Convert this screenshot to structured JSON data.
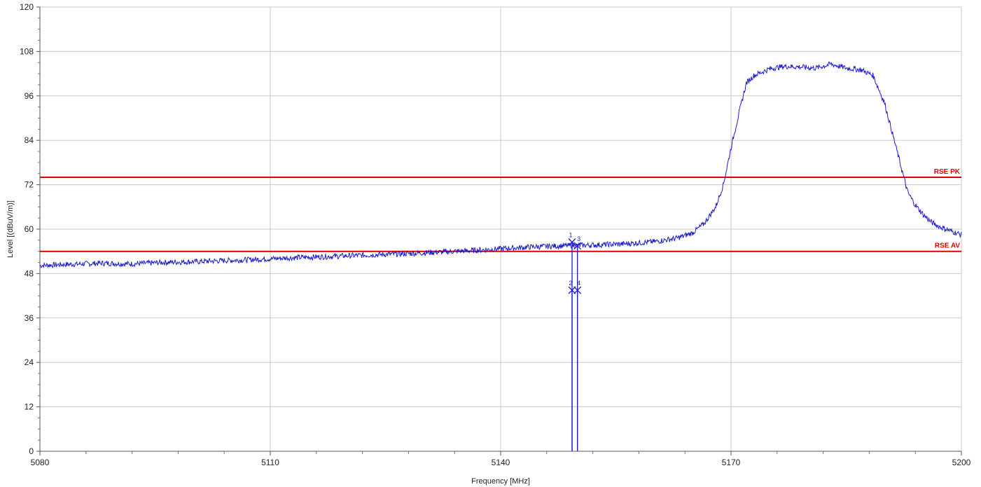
{
  "chart_data": {
    "type": "line",
    "xlabel": "Frequency [MHz]",
    "ylabel": "Level [(dBuV/m)]",
    "xlim": [
      5080,
      5200
    ],
    "ylim": [
      0,
      120
    ],
    "x_ticks": [
      "5080",
      "5110",
      "5140",
      "5170",
      "5200"
    ],
    "x_tick_values": [
      5080,
      5110,
      5140,
      5170,
      5200
    ],
    "y_ticks": [
      "0",
      "12",
      "24",
      "36",
      "48",
      "60",
      "72",
      "84",
      "96",
      "108",
      "120"
    ],
    "y_tick_values": [
      0,
      12,
      24,
      36,
      48,
      60,
      72,
      84,
      96,
      108,
      120
    ],
    "grid": true,
    "colors": {
      "trace": "#1a1acc",
      "limit": "#e00000",
      "grid": "#c8c8c8"
    },
    "limit_lines": [
      {
        "label": "RSE PK",
        "value": 74
      },
      {
        "label": "RSE AV",
        "value": 54
      }
    ],
    "series": [
      {
        "points": [
          [
            5080,
            50.2
          ],
          [
            5084,
            50.5
          ],
          [
            5088,
            50.8
          ],
          [
            5092,
            50.6
          ],
          [
            5096,
            51.0
          ],
          [
            5100,
            51.2
          ],
          [
            5104,
            51.5
          ],
          [
            5108,
            51.8
          ],
          [
            5112,
            52.2
          ],
          [
            5116,
            52.5
          ],
          [
            5120,
            52.8
          ],
          [
            5124,
            53.1
          ],
          [
            5128,
            53.4
          ],
          [
            5132,
            53.8
          ],
          [
            5136,
            54.2
          ],
          [
            5140,
            54.7
          ],
          [
            5144,
            55.2
          ],
          [
            5148,
            55.5
          ],
          [
            5152,
            55.7
          ],
          [
            5156,
            56.0
          ],
          [
            5160,
            56.6
          ],
          [
            5163,
            57.6
          ],
          [
            5165,
            59.0
          ],
          [
            5166.5,
            61.5
          ],
          [
            5168,
            66.0
          ],
          [
            5169,
            72.0
          ],
          [
            5170,
            82.0
          ],
          [
            5171,
            91.0
          ],
          [
            5172,
            99.5
          ],
          [
            5173,
            101.5
          ],
          [
            5175,
            103.3
          ],
          [
            5177,
            104.0
          ],
          [
            5179,
            103.8
          ],
          [
            5181,
            103.5
          ],
          [
            5182,
            104.0
          ],
          [
            5183,
            104.6
          ],
          [
            5185,
            103.5
          ],
          [
            5187,
            103.0
          ],
          [
            5188.5,
            101.5
          ],
          [
            5190,
            94.0
          ],
          [
            5191,
            86.0
          ],
          [
            5192,
            78.0
          ],
          [
            5193,
            70.0
          ],
          [
            5194,
            66.5
          ],
          [
            5195,
            64.0
          ],
          [
            5196,
            62.0
          ],
          [
            5197,
            60.8
          ],
          [
            5198,
            60.0
          ],
          [
            5199,
            59.2
          ],
          [
            5200,
            58.5
          ]
        ]
      }
    ],
    "markers": [
      {
        "label": "1",
        "x": 5149.3,
        "y": 56.5
      },
      {
        "label": "2",
        "x": 5149.3,
        "y": 43.5
      },
      {
        "label": "3",
        "x": 5150.0,
        "y": 55.5
      },
      {
        "label": "4",
        "x": 5150.0,
        "y": 43.5
      }
    ]
  }
}
